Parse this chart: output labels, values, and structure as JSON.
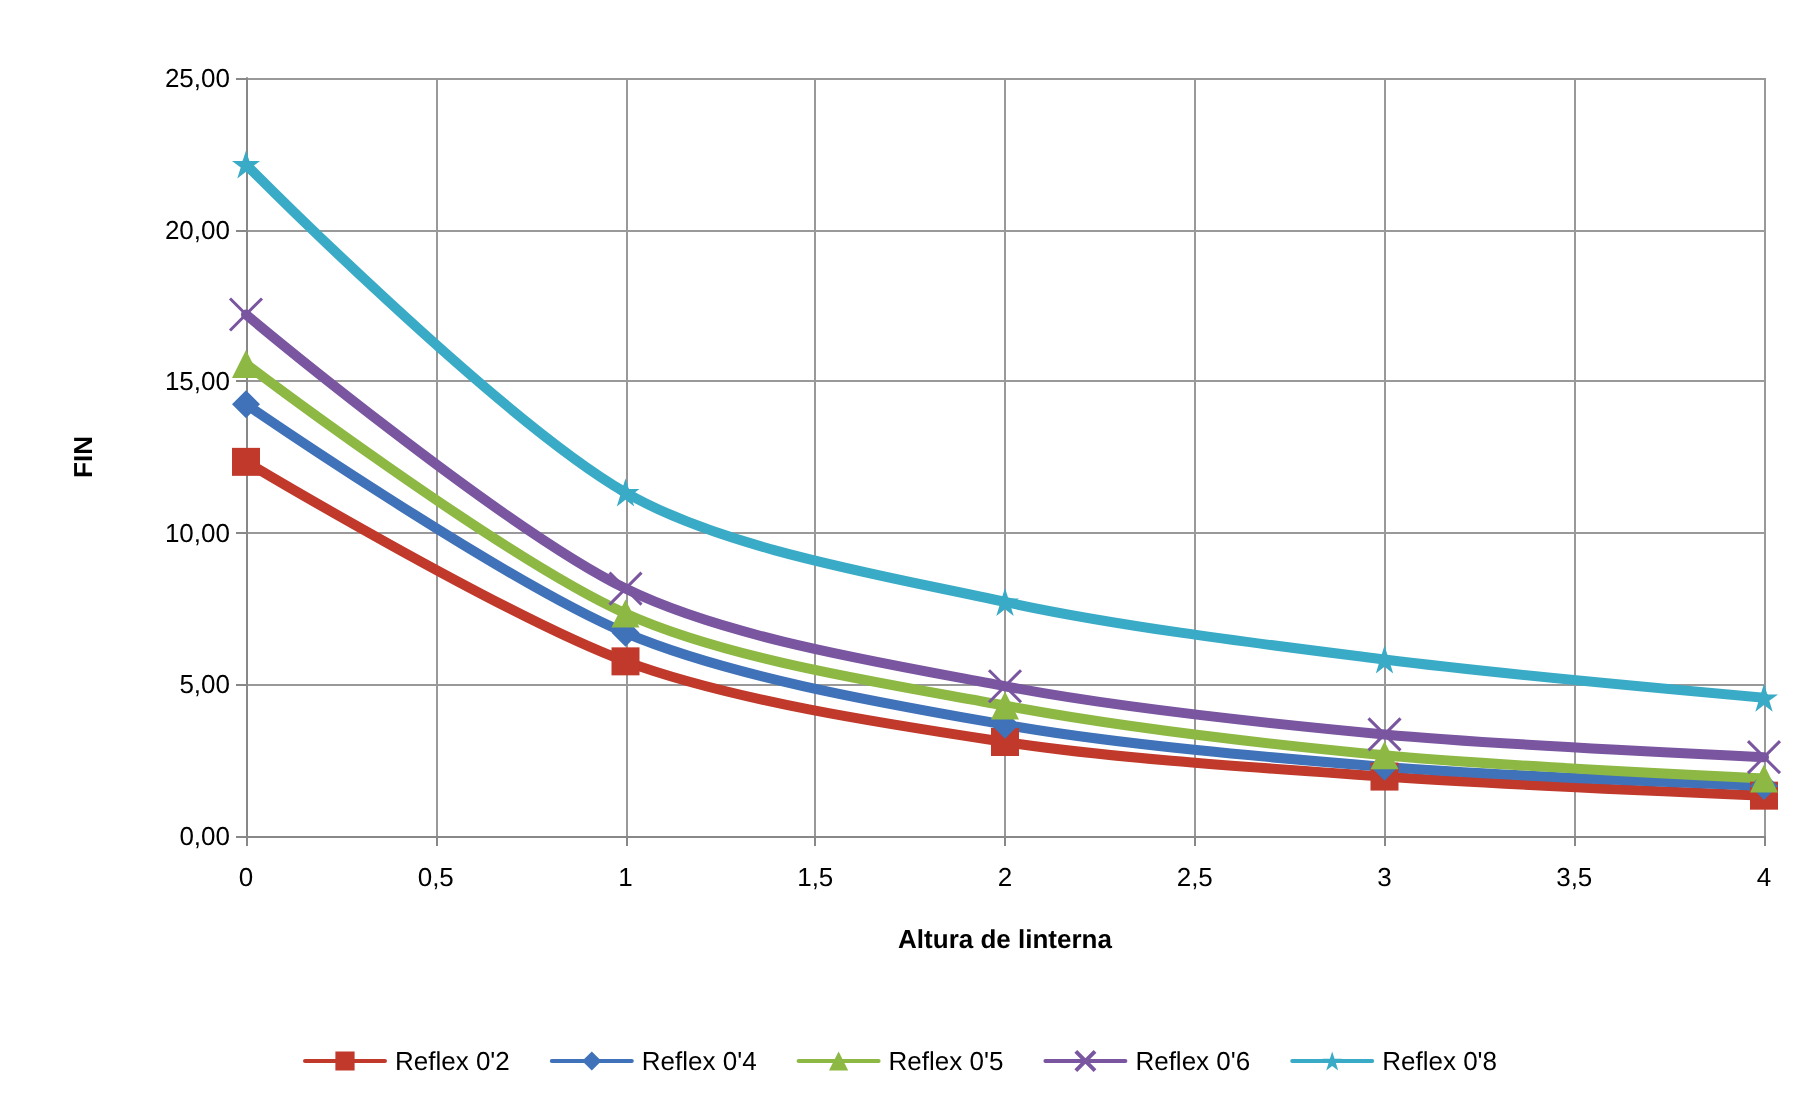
{
  "chart_data": {
    "type": "line",
    "xlabel": "Altura de linterna",
    "ylabel": "FIN",
    "x": [
      0,
      1,
      2,
      3,
      4
    ],
    "series": [
      {
        "name": "Reflex 0'2",
        "color": "#c0392b",
        "marker": "square",
        "values": [
          12.34,
          5.76,
          3.1,
          1.96,
          1.33
        ]
      },
      {
        "name": "Reflex 0'4",
        "color": "#3f72b8",
        "marker": "diamond",
        "values": [
          14.24,
          6.7,
          3.67,
          2.28,
          1.65
        ]
      },
      {
        "name": "Reflex 0'5",
        "color": "#8db843",
        "marker": "triangle",
        "values": [
          15.57,
          7.34,
          4.3,
          2.66,
          1.9
        ]
      },
      {
        "name": "Reflex 0'6",
        "color": "#7a55a0",
        "marker": "cross",
        "values": [
          17.2,
          8.16,
          4.94,
          3.35,
          2.6
        ]
      },
      {
        "name": "Reflex 0'8",
        "color": "#3aabc6",
        "marker": "star",
        "values": [
          22.15,
          11.33,
          7.72,
          5.82,
          4.56
        ]
      }
    ],
    "xlim": [
      0,
      4
    ],
    "xticks": [
      0,
      {
        "value": 0.5,
        "label": "0,5"
      },
      1,
      {
        "value": 1.5,
        "label": "1,5"
      },
      2,
      {
        "value": 2.5,
        "label": "2,5"
      },
      3,
      {
        "value": 3.5,
        "label": "3,5"
      },
      4
    ],
    "ylim": [
      0,
      25
    ],
    "yticks": [
      {
        "value": 0,
        "label": "0,00"
      },
      {
        "value": 5,
        "label": "5,00"
      },
      {
        "value": 10,
        "label": "10,00"
      },
      {
        "value": 15,
        "label": "15,00"
      },
      {
        "value": 20,
        "label": "20,00"
      },
      {
        "value": 25,
        "label": "25,00"
      }
    ],
    "grid": true,
    "legend": "bottom",
    "line_style": "solid"
  }
}
